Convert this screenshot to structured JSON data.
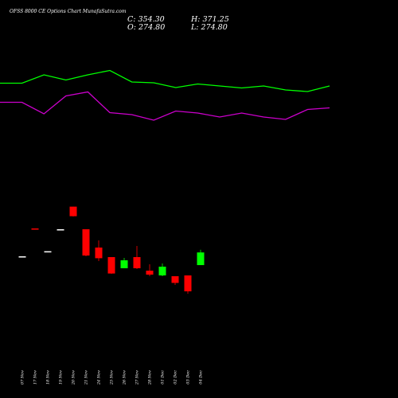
{
  "chart_data": {
    "type": "candlestick",
    "title": "OFSS 8000  CE Options  Chart MunafaSutra.com",
    "ohlc_readout": {
      "close": "C: 354.30",
      "open": "O: 274.80",
      "high": "H: 371.25",
      "low": "L: 274.80"
    },
    "categories": [
      "07 Nov",
      "17 Nov",
      "18 Nov",
      "19 Nov",
      "20 Nov",
      "21 Nov",
      "24 Nov",
      "25 Nov",
      "26 Nov",
      "27 Nov",
      "28 Nov",
      "01 Dec",
      "02 Dec",
      "03 Dec",
      "04 Dec"
    ],
    "candles": [
      {
        "x": "07 Nov",
        "open": 330,
        "high": 330,
        "low": 330,
        "close": 330
      },
      {
        "x": "17 Nov",
        "open": 505,
        "high": 505,
        "low": 498,
        "close": 498
      },
      {
        "x": "18 Nov",
        "open": 362,
        "high": 362,
        "low": 362,
        "close": 362
      },
      {
        "x": "19 Nov",
        "open": 500,
        "high": 500,
        "low": 500,
        "close": 500
      },
      {
        "x": "20 Nov",
        "open": 642,
        "high": 642,
        "low": 580,
        "close": 582
      },
      {
        "x": "21 Nov",
        "open": 500,
        "high": 500,
        "low": 330,
        "close": 335
      },
      {
        "x": "24 Nov",
        "open": 385,
        "high": 430,
        "low": 300,
        "close": 318
      },
      {
        "x": "25 Nov",
        "open": 325,
        "high": 325,
        "low": 220,
        "close": 222
      },
      {
        "x": "26 Nov",
        "open": 255,
        "high": 320,
        "low": 255,
        "close": 305
      },
      {
        "x": "27 Nov",
        "open": 325,
        "high": 395,
        "low": 250,
        "close": 255
      },
      {
        "x": "28 Nov",
        "open": 240,
        "high": 280,
        "low": 205,
        "close": 215
      },
      {
        "x": "01 Dec",
        "open": 210,
        "high": 285,
        "low": 205,
        "close": 265
      },
      {
        "x": "02 Dec",
        "open": 205,
        "high": 205,
        "low": 150,
        "close": 163
      },
      {
        "x": "03 Dec",
        "open": 210,
        "high": 210,
        "low": 95,
        "close": 110
      },
      {
        "x": "04 Dec",
        "open": 274.8,
        "high": 371.25,
        "low": 274.8,
        "close": 354.3
      }
    ],
    "overlay_lines": [
      {
        "color": "#00ff00",
        "values": [
          1055,
          1055,
          1160,
          1095,
          1160,
          1215,
          1070,
          1060,
          1000,
          1045,
          1020,
          995,
          1020,
          970,
          950,
          1020
        ]
      },
      {
        "color": "#cc00cc",
        "values": [
          815,
          815,
          670,
          895,
          945,
          685,
          660,
          590,
          705,
          680,
          630,
          680,
          630,
          600,
          725,
          745
        ]
      }
    ],
    "colors": {
      "up": "#00ff00",
      "down": "#ff0000",
      "doji": "#ffffff",
      "background": "#000000"
    },
    "grid": false
  }
}
